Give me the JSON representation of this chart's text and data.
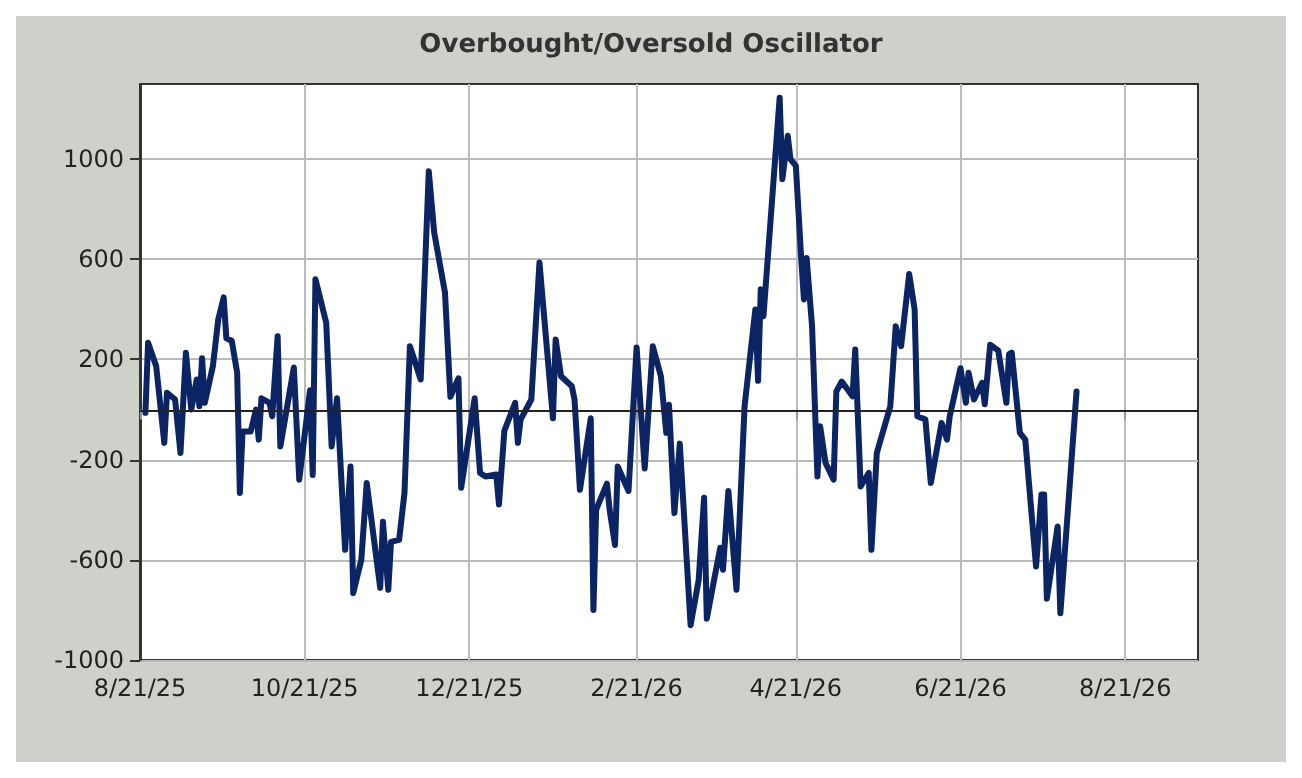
{
  "chart_data": {
    "type": "line",
    "title": "Overbought/Oversold Oscillator",
    "x": [
      "2025-08-23",
      "2025-08-24",
      "2025-08-27",
      "2025-08-30",
      "2025-08-31",
      "2025-09-03",
      "2025-09-05",
      "2025-09-07",
      "2025-09-09",
      "2025-09-11",
      "2025-09-12",
      "2025-09-13",
      "2025-09-14",
      "2025-09-17",
      "2025-09-19",
      "2025-09-21",
      "2025-09-22",
      "2025-09-24",
      "2025-09-26",
      "2025-09-27",
      "2025-09-28",
      "2025-10-01",
      "2025-10-03",
      "2025-10-04",
      "2025-10-05",
      "2025-10-08",
      "2025-10-09",
      "2025-10-11",
      "2025-10-12",
      "2025-10-17",
      "2025-10-19",
      "2025-10-23",
      "2025-10-24",
      "2025-10-25",
      "2025-10-29",
      "2025-10-31",
      "2025-11-02",
      "2025-11-05",
      "2025-11-07",
      "2025-11-08",
      "2025-11-11",
      "2025-11-13",
      "2025-11-18",
      "2025-11-19",
      "2025-11-21",
      "2025-11-22",
      "2025-11-25",
      "2025-11-27",
      "2025-11-29",
      "2025-12-03",
      "2025-12-06",
      "2025-12-08",
      "2025-12-12",
      "2025-12-14",
      "2025-12-17",
      "2025-12-18",
      "2025-12-23",
      "2025-12-25",
      "2025-12-27",
      "2025-12-31",
      "2026-01-01",
      "2026-01-03",
      "2026-01-07",
      "2026-01-08",
      "2026-01-09",
      "2026-01-13",
      "2026-01-16",
      "2026-01-21",
      "2026-01-22",
      "2026-01-24",
      "2026-01-28",
      "2026-01-29",
      "2026-01-31",
      "2026-02-04",
      "2026-02-05",
      "2026-02-06",
      "2026-02-10",
      "2026-02-11",
      "2026-02-13",
      "2026-02-14",
      "2026-02-18",
      "2026-02-21",
      "2026-02-24",
      "2026-02-27",
      "2026-03-02",
      "2026-03-04",
      "2026-03-05",
      "2026-03-07",
      "2026-03-09",
      "2026-03-13",
      "2026-03-16",
      "2026-03-18",
      "2026-03-19",
      "2026-03-21",
      "2026-03-24",
      "2026-03-25",
      "2026-03-27",
      "2026-03-30",
      "2026-04-02",
      "2026-04-06",
      "2026-04-07",
      "2026-04-08",
      "2026-04-09",
      "2026-04-15",
      "2026-04-16",
      "2026-04-18",
      "2026-04-19",
      "2026-04-21",
      "2026-04-23",
      "2026-04-24",
      "2026-04-25",
      "2026-04-27",
      "2026-04-29",
      "2026-04-30",
      "2026-05-02",
      "2026-05-05",
      "2026-05-06",
      "2026-05-08",
      "2026-05-12",
      "2026-05-13",
      "2026-05-15",
      "2026-05-18",
      "2026-05-19",
      "2026-05-21",
      "2026-05-26",
      "2026-05-28",
      "2026-05-30",
      "2026-06-02",
      "2026-06-04",
      "2026-06-05",
      "2026-06-08",
      "2026-06-10",
      "2026-06-14",
      "2026-06-16",
      "2026-06-17",
      "2026-06-21",
      "2026-06-23",
      "2026-06-24",
      "2026-06-26",
      "2026-06-29",
      "2026-06-30",
      "2026-07-02",
      "2026-07-05",
      "2026-07-08",
      "2026-07-09",
      "2026-07-10",
      "2026-07-13",
      "2026-07-15",
      "2026-07-19",
      "2026-07-21",
      "2026-07-22",
      "2026-07-23",
      "2026-07-27",
      "2026-07-28",
      "2026-08-03"
    ],
    "series": [
      {
        "color": "#0b2463",
        "values": [
          -13,
          267,
          173,
          -133,
          67,
          40,
          -173,
          227,
          0,
          120,
          13,
          205,
          27,
          173,
          360,
          448,
          285,
          275,
          147,
          -333,
          -88,
          -88,
          0,
          -120,
          45,
          27,
          -27,
          293,
          -147,
          168,
          -280,
          77,
          -261,
          520,
          347,
          -147,
          45,
          -560,
          -227,
          -733,
          -600,
          -293,
          -712,
          -448,
          -720,
          -528,
          -520,
          -333,
          253,
          120,
          952,
          707,
          467,
          51,
          125,
          -312,
          45,
          -253,
          -267,
          -259,
          -379,
          -85,
          27,
          -133,
          -40,
          40,
          587,
          -35,
          280,
          133,
          93,
          40,
          -320,
          -35,
          -800,
          -400,
          -296,
          -400,
          -541,
          -227,
          -325,
          248,
          -235,
          253,
          133,
          -93,
          19,
          -413,
          -136,
          -861,
          -680,
          -352,
          -835,
          -720,
          -552,
          -640,
          -325,
          -720,
          13,
          400,
          115,
          480,
          373,
          1245,
          920,
          1093,
          1000,
          973,
          600,
          440,
          605,
          333,
          -267,
          -67,
          -213,
          -280,
          72,
          112,
          53,
          240,
          -307,
          -253,
          -560,
          -173,
          13,
          333,
          253,
          541,
          400,
          -27,
          -40,
          -293,
          -53,
          -120,
          -27,
          165,
          27,
          147,
          40,
          107,
          21,
          259,
          235,
          27,
          221,
          227,
          -93,
          -120,
          -627,
          -339,
          -339,
          -755,
          -467,
          -813,
          72
        ]
      }
    ],
    "xlim": [
      "2025-08-21",
      "2026-09-17"
    ],
    "xticks": [
      {
        "value": "2025-08-21",
        "label": "8/21/25"
      },
      {
        "value": "2025-10-21",
        "label": "10/21/25"
      },
      {
        "value": "2025-12-21",
        "label": "12/21/25"
      },
      {
        "value": "2026-02-21",
        "label": "2/21/26"
      },
      {
        "value": "2026-04-21",
        "label": "4/21/26"
      },
      {
        "value": "2026-06-21",
        "label": "6/21/26"
      },
      {
        "value": "2026-08-21",
        "label": "8/21/26"
      }
    ],
    "ylim": [
      -1000,
      1300
    ],
    "yticks": [
      -1000,
      -600,
      -200,
      200,
      600,
      1000
    ],
    "ref_lines": [
      {
        "axis": "y",
        "value": 0,
        "color": "#222222"
      }
    ],
    "grid": true,
    "marker": "none",
    "line_style": "solid"
  }
}
